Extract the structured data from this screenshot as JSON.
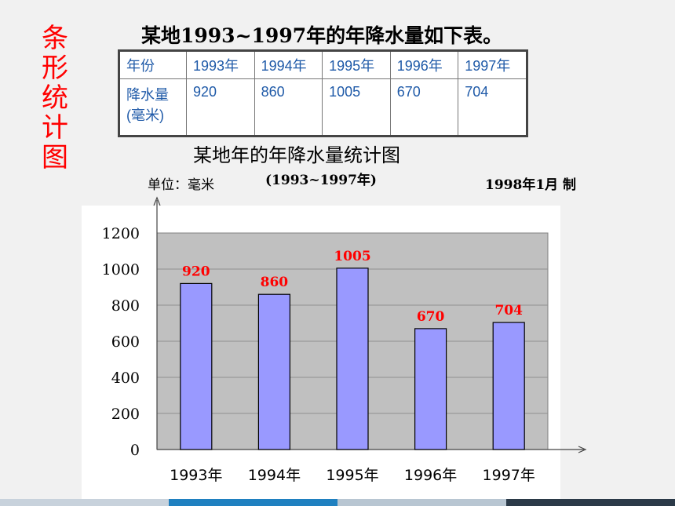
{
  "side_title": [
    "条",
    "形",
    "统",
    "计",
    "图"
  ],
  "table_caption": "某地1993~1997年的年降水量如下表。",
  "table": {
    "header": [
      "年份",
      "1993年",
      "1994年",
      "1995年",
      "1996年",
      "1997年"
    ],
    "row_label_1": "降水量",
    "row_label_2": "(毫米)",
    "values": [
      "920",
      "860",
      "1005",
      "670",
      "704"
    ]
  },
  "chart_header": {
    "title": "某地年的年降水量统计图",
    "subtitle": "(1993~1997年)",
    "unit": "单位：毫米",
    "made": "1998年1月 制"
  },
  "colors": {
    "bar_fill": "#9999ff",
    "plot_bg": "#c0c0c0",
    "data_label": "#ff0000",
    "side_title": "#ff0000",
    "table_text": "#1f5aa8"
  },
  "chart_data": {
    "type": "bar",
    "title": "某地年的年降水量统计图",
    "subtitle": "(1993~1997年)",
    "ylabel": "单位：毫米",
    "categories": [
      "1993年",
      "1994年",
      "1995年",
      "1996年",
      "1997年"
    ],
    "values": [
      920,
      860,
      1005,
      670,
      704
    ],
    "ylim": [
      0,
      1200
    ],
    "yticks": [
      0,
      200,
      400,
      600,
      800,
      1000,
      1200
    ],
    "grid": true,
    "legend": "none"
  }
}
